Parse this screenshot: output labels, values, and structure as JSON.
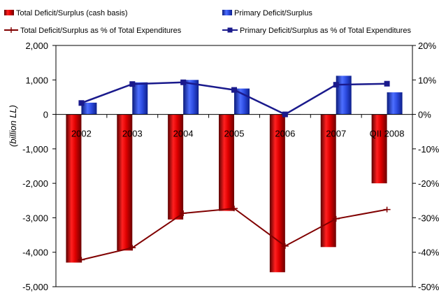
{
  "chart_data": {
    "type": "bar",
    "categories": [
      "2002",
      "2003",
      "2004",
      "2005",
      "2006",
      "2007",
      "QII 2008"
    ],
    "ylabel": "(billion LL)",
    "ylim": [
      -5000,
      2000
    ],
    "yticks": [
      "2,000",
      "1,000",
      "0",
      "-1,000",
      "-2,000",
      "-3,000",
      "-4,000",
      "-5,000"
    ],
    "y2lim": [
      -50,
      20
    ],
    "y2ticks": [
      "20%",
      "10%",
      "0%",
      "-10%",
      "-20%",
      "-30%",
      "-40%",
      "-50%"
    ],
    "legend_position": "top",
    "grid": false,
    "series": [
      {
        "name": "Total Deficit/Surplus (cash basis)",
        "kind": "bar",
        "axis": "left",
        "color": "#cc0000",
        "values": [
          -4300,
          -3950,
          -3050,
          -2800,
          -4580,
          -3850,
          -2000
        ]
      },
      {
        "name": "Primary Deficit/Surplus",
        "kind": "bar",
        "axis": "left",
        "color": "#2b4ccf",
        "values": [
          340,
          930,
          1000,
          750,
          10,
          1120,
          640
        ]
      },
      {
        "name": "Total Deficit/Surplus as % of Total Expenditures",
        "kind": "line",
        "axis": "right",
        "color": "#800000",
        "values": [
          -42.2,
          -38.7,
          -28.7,
          -27.3,
          -38.2,
          -30.3,
          -27.6
        ]
      },
      {
        "name": "Primary Deficit/Surplus as % of Total Expenditures",
        "kind": "line",
        "axis": "right",
        "color": "#1a1a8c",
        "values": [
          3.3,
          8.8,
          9.3,
          7.1,
          0.0,
          8.6,
          8.9
        ]
      }
    ]
  }
}
